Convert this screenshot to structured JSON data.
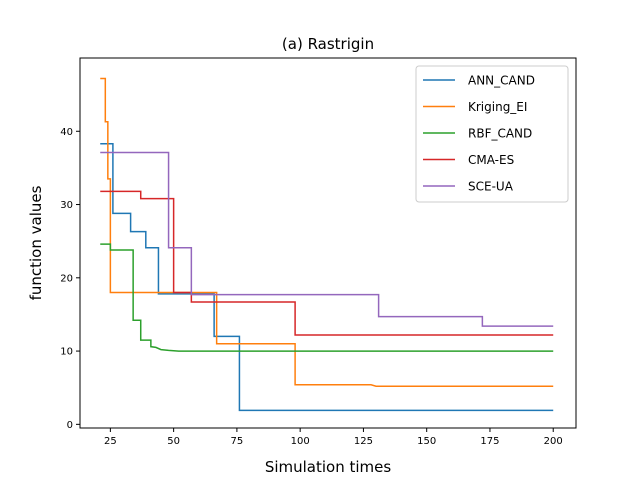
{
  "chart_data": {
    "type": "line",
    "title": "(a) Rastrigin",
    "xlabel": "Simulation times",
    "ylabel": "function values",
    "xlim": [
      13,
      209
    ],
    "ylim": [
      -0.5,
      50
    ],
    "xticks": [
      25,
      50,
      75,
      100,
      125,
      150,
      175,
      200
    ],
    "yticks": [
      0,
      10,
      20,
      30,
      40
    ],
    "grid": false,
    "legend": "top-right",
    "series": [
      {
        "name": "ANN_CAND",
        "color": "#1f77b4",
        "x": [
          21,
          26,
          26,
          33,
          33,
          39,
          39,
          44,
          44,
          66,
          66,
          76,
          76,
          200
        ],
        "y": [
          38.3,
          38.3,
          28.8,
          28.8,
          26.3,
          26.3,
          24.1,
          24.1,
          17.8,
          17.8,
          12.0,
          12.0,
          1.9,
          1.9
        ]
      },
      {
        "name": "Kriging_EI",
        "color": "#ff7f0e",
        "x": [
          21,
          23,
          23,
          24,
          24,
          25,
          25,
          67,
          67,
          98,
          98,
          128,
          130,
          200
        ],
        "y": [
          47.2,
          47.2,
          41.3,
          41.3,
          33.5,
          33.5,
          18.0,
          18.0,
          11.0,
          11.0,
          5.4,
          5.4,
          5.2,
          5.2
        ]
      },
      {
        "name": "RBF_CAND",
        "color": "#2ca02c",
        "x": [
          21,
          25,
          25,
          34,
          34,
          37,
          37,
          40,
          40,
          41,
          41,
          43,
          45,
          48,
          52,
          200
        ],
        "y": [
          24.6,
          24.6,
          23.8,
          23.8,
          14.2,
          14.2,
          11.5,
          11.5,
          11.5,
          11.5,
          10.6,
          10.5,
          10.2,
          10.1,
          10.0,
          10.0
        ]
      },
      {
        "name": "CMA-ES",
        "color": "#d62728",
        "x": [
          21,
          37,
          37,
          50,
          50,
          57,
          57,
          98,
          98,
          200
        ],
        "y": [
          31.8,
          31.8,
          30.8,
          30.8,
          18.0,
          18.0,
          16.7,
          16.7,
          12.2,
          12.2
        ]
      },
      {
        "name": "SCE-UA",
        "color": "#9467bd",
        "x": [
          21,
          48,
          48,
          57,
          57,
          131,
          131,
          172,
          172,
          200
        ],
        "y": [
          37.1,
          37.1,
          24.1,
          24.1,
          17.7,
          17.7,
          14.7,
          14.7,
          13.4,
          13.4
        ]
      }
    ]
  }
}
